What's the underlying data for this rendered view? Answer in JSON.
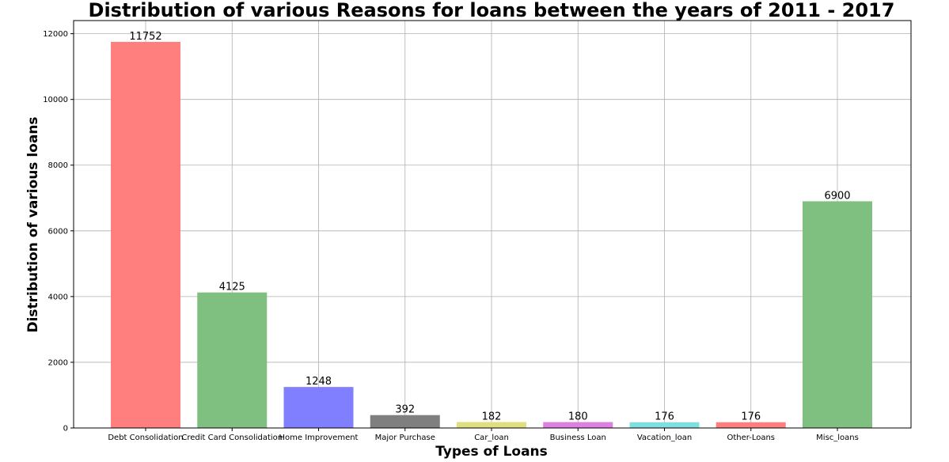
{
  "chart_data": {
    "type": "bar",
    "title": "Distribution of various Reasons for loans between the years of 2011 - 2017",
    "xlabel": "Types of Loans",
    "ylabel": "Distribution of various loans",
    "categories": [
      "Debt Consolidation",
      "Credit Card Consolidation",
      "Home Improvement",
      "Major Purchase",
      "Car_loan",
      "Business Loan",
      "Vacation_loan",
      "Other-Loans",
      "Misc_loans"
    ],
    "values": [
      11752,
      4125,
      1248,
      392,
      182,
      180,
      176,
      176,
      6900
    ],
    "data_labels": [
      "11752",
      "4125",
      "1248",
      "392",
      "182",
      "180",
      "176",
      "176",
      "6900"
    ],
    "colors": [
      "#ff7f7f",
      "#7fbf7f",
      "#7f7fff",
      "#7f7f7f",
      "#dfdf7f",
      "#df7fdf",
      "#7fdfdf",
      "#ff7f7f",
      "#7fbf7f"
    ],
    "yticks": [
      "0",
      "2000",
      "4000",
      "6000",
      "8000",
      "10000",
      "12000"
    ],
    "ytick_values": [
      0,
      2000,
      4000,
      6000,
      8000,
      10000,
      12000
    ],
    "ylim": [
      0,
      12400
    ],
    "grid": true,
    "legend": "none"
  }
}
